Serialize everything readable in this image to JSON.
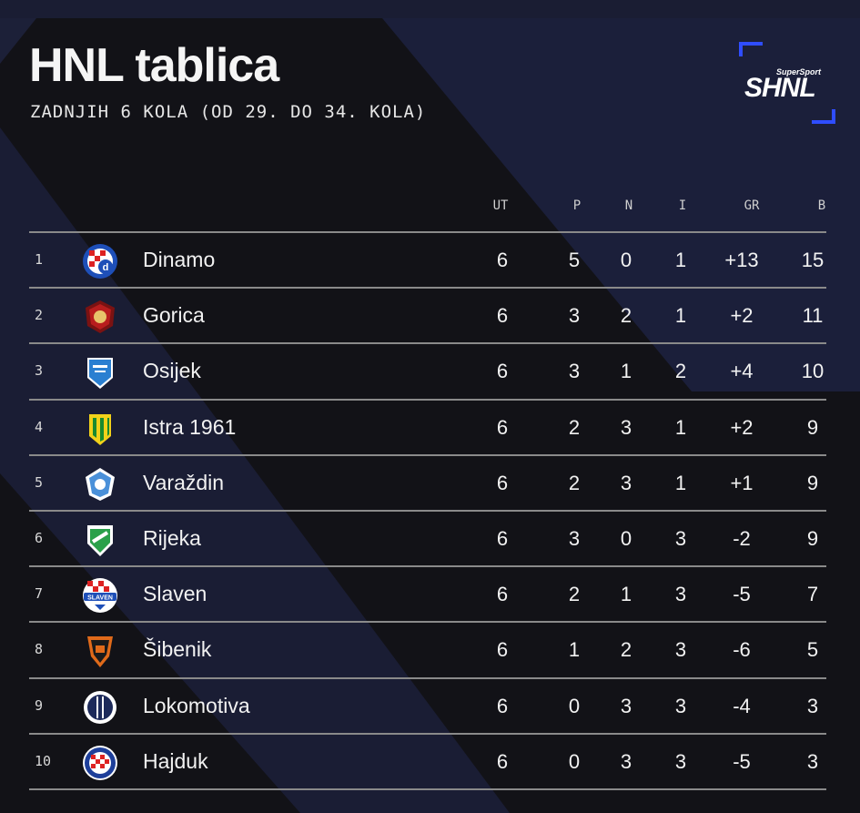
{
  "title": "HNL tablica",
  "subtitle": "ZADNJIH 6 KOLA (OD 29. DO 34. KOLA)",
  "logo": {
    "small": "SuperSport",
    "main": "SHNL",
    "bracket_color": "#2f4dff"
  },
  "columns": {
    "ut": "UT",
    "p": "P",
    "n": "N",
    "i": "I",
    "gr": "GR",
    "b": "B"
  },
  "rows": [
    {
      "pos": "1",
      "team": "Dinamo",
      "ut": "6",
      "p": "5",
      "n": "0",
      "i": "1",
      "gr": "+13",
      "b": "15",
      "crest": "dinamo-crest-icon"
    },
    {
      "pos": "2",
      "team": "Gorica",
      "ut": "6",
      "p": "3",
      "n": "2",
      "i": "1",
      "gr": "+2",
      "b": "11",
      "crest": "gorica-crest-icon"
    },
    {
      "pos": "3",
      "team": "Osijek",
      "ut": "6",
      "p": "3",
      "n": "1",
      "i": "2",
      "gr": "+4",
      "b": "10",
      "crest": "osijek-crest-icon"
    },
    {
      "pos": "4",
      "team": "Istra 1961",
      "ut": "6",
      "p": "2",
      "n": "3",
      "i": "1",
      "gr": "+2",
      "b": "9",
      "crest": "istra-crest-icon"
    },
    {
      "pos": "5",
      "team": "Varaždin",
      "ut": "6",
      "p": "2",
      "n": "3",
      "i": "1",
      "gr": "+1",
      "b": "9",
      "crest": "varazdin-crest-icon"
    },
    {
      "pos": "6",
      "team": "Rijeka",
      "ut": "6",
      "p": "3",
      "n": "0",
      "i": "3",
      "gr": "-2",
      "b": "9",
      "crest": "rijeka-crest-icon"
    },
    {
      "pos": "7",
      "team": "Slaven",
      "ut": "6",
      "p": "2",
      "n": "1",
      "i": "3",
      "gr": "-5",
      "b": "7",
      "crest": "slaven-crest-icon",
      "crest_text": "SLAVEN"
    },
    {
      "pos": "8",
      "team": "Šibenik",
      "ut": "6",
      "p": "1",
      "n": "2",
      "i": "3",
      "gr": "-6",
      "b": "5",
      "crest": "sibenik-crest-icon"
    },
    {
      "pos": "9",
      "team": "Lokomotiva",
      "ut": "6",
      "p": "0",
      "n": "3",
      "i": "3",
      "gr": "-4",
      "b": "3",
      "crest": "lokomotiva-crest-icon"
    },
    {
      "pos": "10",
      "team": "Hajduk",
      "ut": "6",
      "p": "0",
      "n": "3",
      "i": "3",
      "gr": "-5",
      "b": "3",
      "crest": "hajduk-crest-icon"
    }
  ]
}
